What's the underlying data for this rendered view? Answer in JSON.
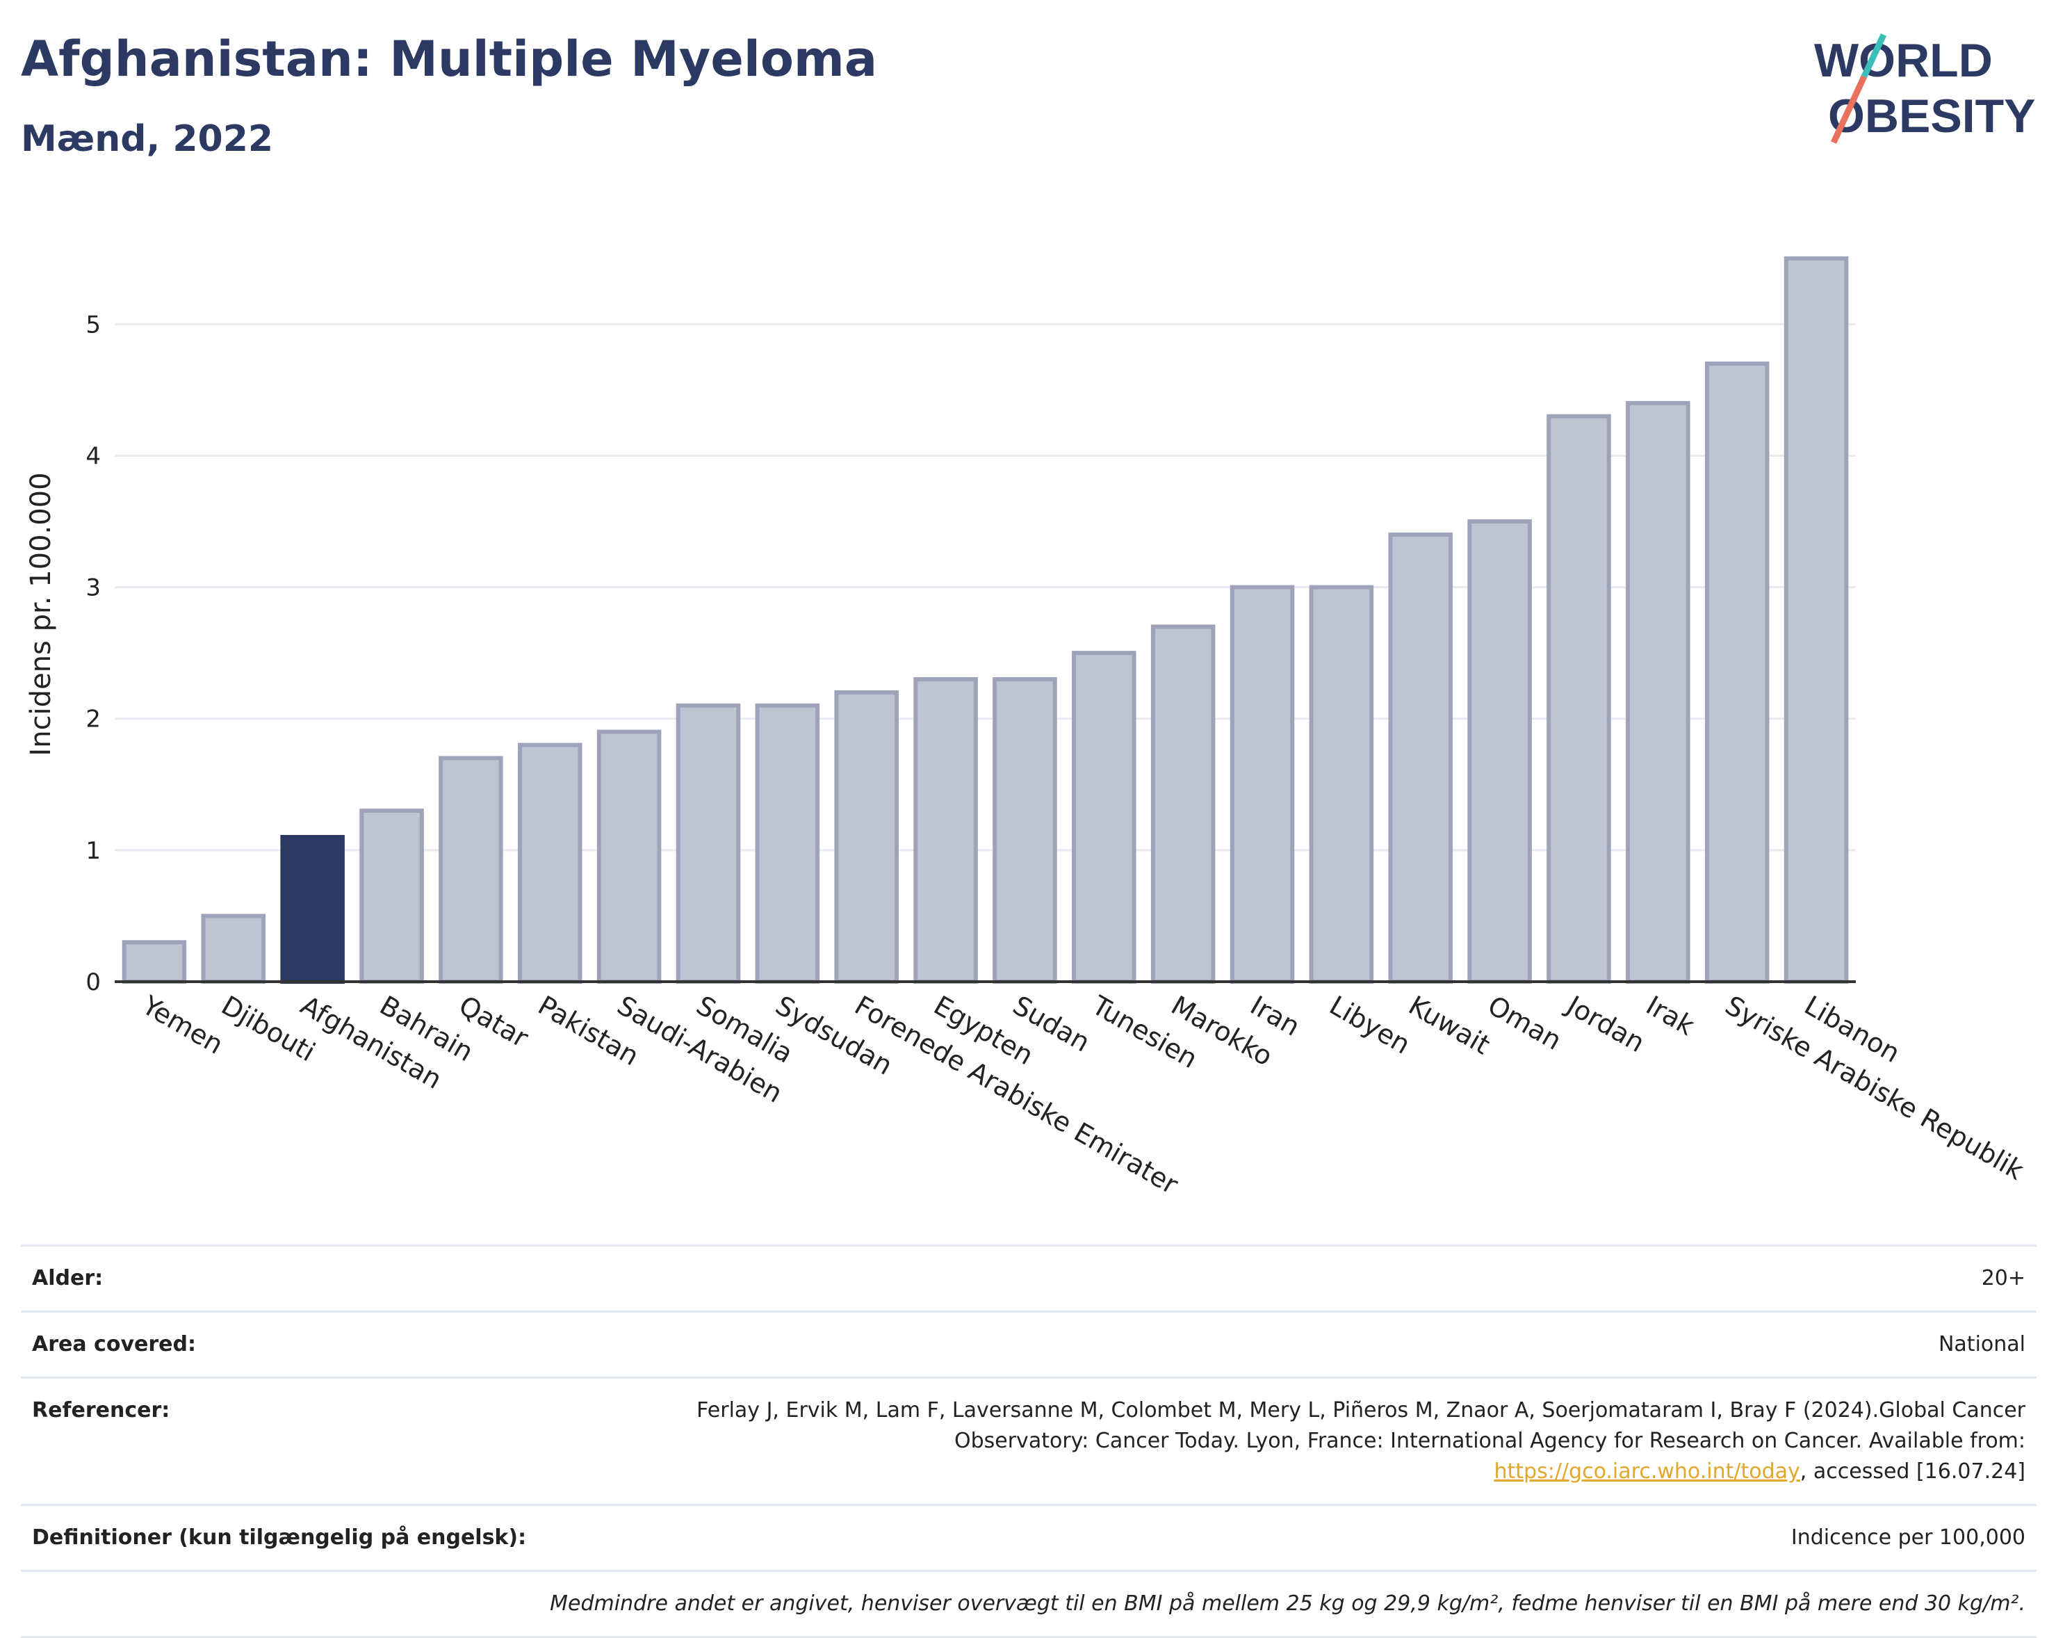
{
  "header": {
    "title": "Afghanistan: Multiple Myeloma",
    "subtitle": "Mænd, 2022"
  },
  "logo": {
    "line1": "WORLD",
    "line2": "OBESITY"
  },
  "chart_data": {
    "type": "bar",
    "ylabel": "Incidens pr. 100.000",
    "xlabel": "",
    "ylim": [
      0,
      5.8
    ],
    "yticks": [
      0,
      1,
      2,
      3,
      4,
      5
    ],
    "grid": true,
    "highlight": "Afghanistan",
    "categories": [
      "Yemen",
      "Djibouti",
      "Afghanistan",
      "Bahrain",
      "Qatar",
      "Pakistan",
      "Saudi-Arabien",
      "Somalia",
      "Sydsudan",
      "Forenede Arabiske Emirater",
      "Egypten",
      "Sudan",
      "Tunesien",
      "Marokko",
      "Iran",
      "Libyen",
      "Kuwait",
      "Oman",
      "Jordan",
      "Irak",
      "Syriske Arabiske Republik",
      "Libanon"
    ],
    "values": [
      0.3,
      0.5,
      1.1,
      1.3,
      1.7,
      1.8,
      1.9,
      2.1,
      2.1,
      2.2,
      2.3,
      2.3,
      2.5,
      2.7,
      3.0,
      3.0,
      3.4,
      3.5,
      4.3,
      4.4,
      4.7,
      5.5
    ],
    "colors": {
      "bar": "#c0c3d1",
      "bar_border": "#9ea3ba",
      "highlight": "#2c3a63",
      "grid": "#e8eaf0",
      "axis": "#333333"
    }
  },
  "meta": {
    "age_label": "Alder:",
    "age_value": "20+",
    "area_label": "Area covered:",
    "area_value": "National",
    "ref_label": "Referencer:",
    "ref_text1": "Ferlay J, Ervik M, Lam F, Laversanne M, Colombet M, Mery L, Piñeros M, Znaor A, Soerjomataram I, Bray F (2024).Global Cancer Observatory: Cancer Today. Lyon, France: International Agency for Research on Cancer. Available from: ",
    "ref_link": "https://gco.iarc.who.int/today",
    "ref_text2": ", accessed [16.07.24]",
    "def_label": "Definitioner (kun tilgængelig på engelsk):",
    "def_value": "Indicence per 100,000",
    "note": "Medmindre andet er angivet, henviser overvægt til en BMI på mellem 25 kg og 29,9 kg/m², fedme henviser til en BMI på mere end 30 kg/m²."
  }
}
